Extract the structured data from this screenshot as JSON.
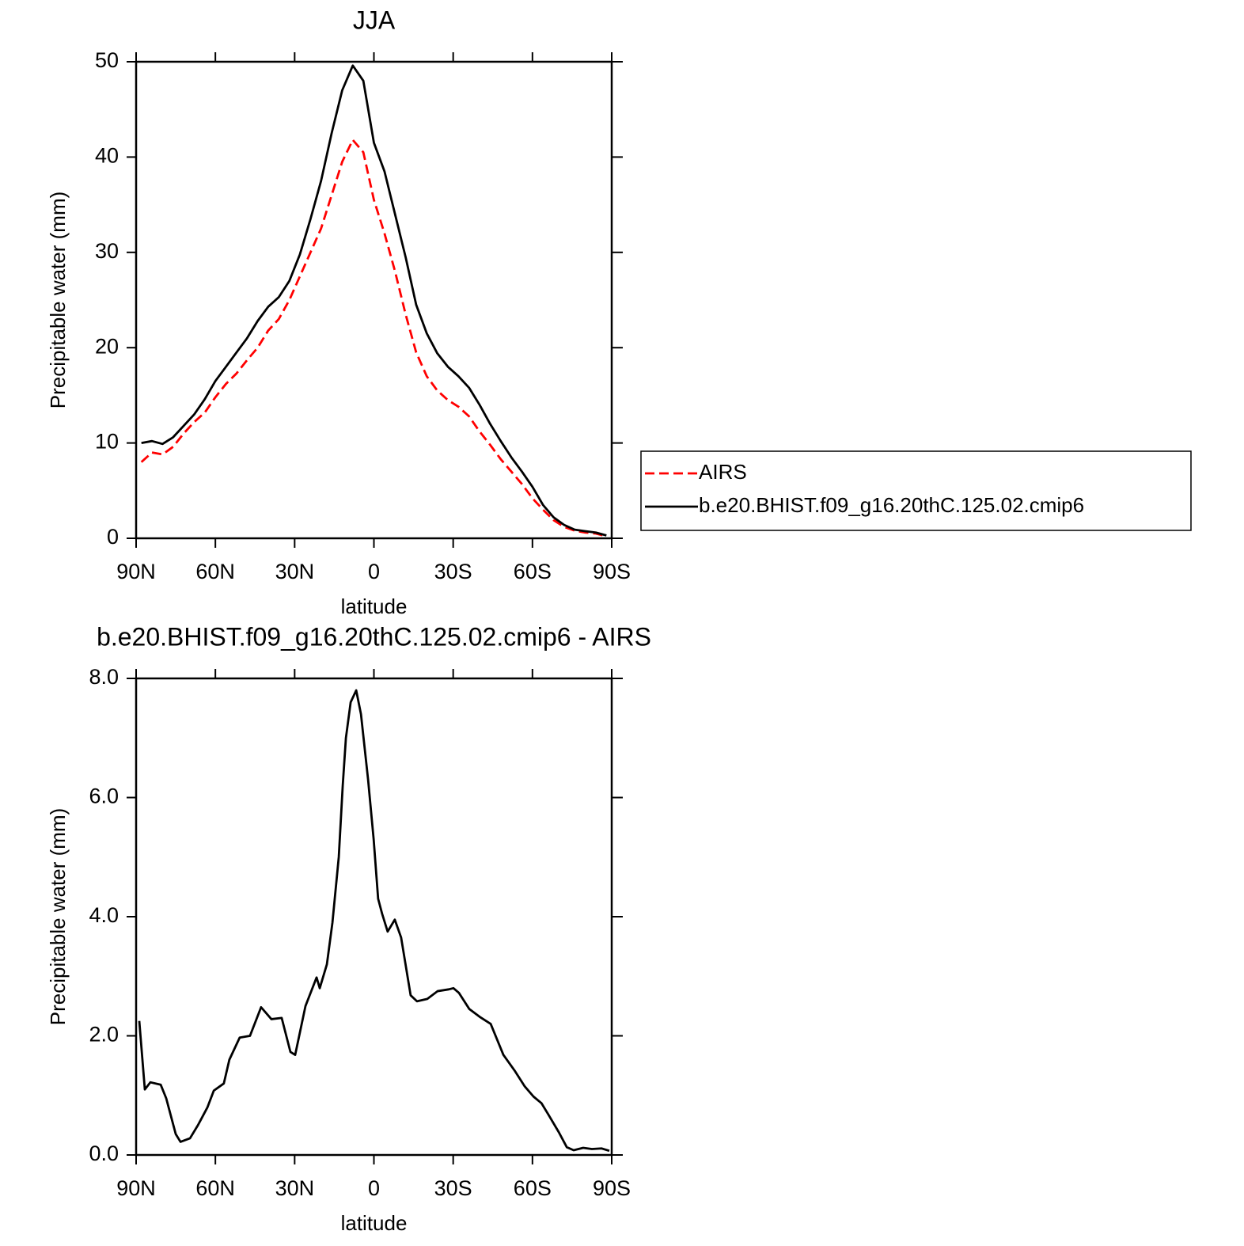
{
  "chart_data": [
    {
      "type": "line",
      "title": "JJA",
      "xlabel": "latitude",
      "ylabel": "Precipitable water (mm)",
      "x": [
        88,
        84,
        80,
        76,
        72,
        68,
        64,
        60,
        56,
        52,
        48,
        44,
        40,
        36,
        32,
        28,
        24,
        20,
        16,
        12,
        8,
        4,
        0,
        -4,
        -8,
        -12,
        -16,
        -20,
        -24,
        -28,
        -32,
        -36,
        -40,
        -44,
        -48,
        -52,
        -56,
        -60,
        -64,
        -68,
        -72,
        -76,
        -80,
        -84,
        -88
      ],
      "series": [
        {
          "name": "AIRS",
          "color": "#ff0000",
          "linestyle": "dashed",
          "values": [
            8.0,
            9.0,
            8.8,
            9.6,
            11.0,
            12.2,
            13.2,
            14.8,
            16.2,
            17.3,
            18.7,
            20.0,
            21.8,
            23.0,
            25.0,
            27.5,
            30.0,
            32.5,
            36.0,
            39.5,
            41.8,
            40.5,
            35.5,
            32.0,
            28.0,
            23.5,
            19.5,
            17.0,
            15.5,
            14.5,
            13.8,
            12.8,
            11.2,
            9.8,
            8.3,
            7.0,
            5.7,
            4.2,
            3.0,
            1.9,
            1.2,
            0.8,
            0.6,
            0.5,
            0.2
          ]
        },
        {
          "name": "b.e20.BHIST.f09_g16.20thC.125.02.cmip6",
          "color": "#000000",
          "linestyle": "solid",
          "values": [
            10.0,
            10.2,
            9.9,
            10.6,
            11.8,
            13.0,
            14.6,
            16.5,
            18.0,
            19.5,
            21.0,
            22.8,
            24.3,
            25.3,
            27.0,
            29.8,
            33.5,
            37.5,
            42.5,
            47.0,
            49.6,
            48.0,
            41.5,
            38.5,
            34.0,
            29.5,
            24.5,
            21.5,
            19.4,
            18.0,
            17.0,
            15.8,
            14.0,
            12.0,
            10.2,
            8.5,
            7.0,
            5.4,
            3.5,
            2.2,
            1.4,
            0.9,
            0.75,
            0.6,
            0.3
          ]
        }
      ],
      "xlim": [
        90,
        -90
      ],
      "xticks": [
        {
          "value": 90,
          "label": "90N"
        },
        {
          "value": 60,
          "label": "60N"
        },
        {
          "value": 30,
          "label": "30N"
        },
        0,
        {
          "value": -30,
          "label": "30S"
        },
        {
          "value": -60,
          "label": "60S"
        },
        {
          "value": -90,
          "label": "90S"
        }
      ],
      "ylim": [
        0,
        50
      ],
      "yticks": [
        0,
        10,
        20,
        30,
        40,
        50
      ],
      "legend": "outside-right"
    },
    {
      "type": "line",
      "title": "b.e20.BHIST.f09_g16.20thC.125.02.cmip6 - AIRS",
      "xlabel": "latitude",
      "ylabel": "Precipitable water (mm)",
      "x": [
        88.8,
        86.7,
        84.6,
        80.7,
        78.6,
        75,
        73.2,
        69.6,
        66.6,
        63,
        60.6,
        56.8,
        54.7,
        50.8,
        46.9,
        42.7,
        38.8,
        34.9,
        31.6,
        29.8,
        25.9,
        21.7,
        20.5,
        17.8,
        15.7,
        13.3,
        11.8,
        10.6,
        8.8,
        6.7,
        4.9,
        2.2,
        0.1,
        -1.6,
        -3.1,
        -5.2,
        -7.9,
        -10.3,
        -13.9,
        -16.3,
        -20.2,
        -24.1,
        -28.3,
        -30.1,
        -32.2,
        -36.1,
        -40,
        -44.2,
        -49,
        -53.2,
        -57.1,
        -60.4,
        -63.4,
        -66,
        -70,
        -73,
        -75.6,
        -79.2,
        -82.5,
        -86.1,
        -89.1
      ],
      "series": [
        {
          "color": "#000000",
          "linestyle": "solid",
          "values": [
            2.25,
            1.1,
            1.22,
            1.18,
            0.95,
            0.35,
            0.22,
            0.28,
            0.5,
            0.8,
            1.08,
            1.2,
            1.6,
            1.97,
            2.0,
            2.48,
            2.28,
            2.3,
            1.73,
            1.68,
            2.5,
            2.98,
            2.8,
            3.2,
            3.9,
            5.0,
            6.2,
            7.0,
            7.6,
            7.8,
            7.4,
            6.3,
            5.3,
            4.3,
            4.05,
            3.75,
            3.95,
            3.65,
            2.68,
            2.58,
            2.62,
            2.75,
            2.78,
            2.8,
            2.72,
            2.45,
            2.32,
            2.2,
            1.68,
            1.42,
            1.15,
            0.98,
            0.87,
            0.68,
            0.38,
            0.13,
            0.08,
            0.12,
            0.1,
            0.11,
            0.07
          ]
        }
      ],
      "xlim": [
        90,
        -90
      ],
      "xticks": [
        {
          "value": 90,
          "label": "90N"
        },
        {
          "value": 60,
          "label": "60N"
        },
        {
          "value": 30,
          "label": "30N"
        },
        0,
        {
          "value": -30,
          "label": "30S"
        },
        {
          "value": -60,
          "label": "60S"
        },
        {
          "value": -90,
          "label": "90S"
        }
      ],
      "ylim": [
        0,
        8
      ],
      "yticks": [
        {
          "value": 0,
          "label": "0.0"
        },
        {
          "value": 2,
          "label": "2.0"
        },
        {
          "value": 4,
          "label": "4.0"
        },
        {
          "value": 6,
          "label": "6.0"
        },
        {
          "value": 8,
          "label": "8.0"
        }
      ]
    }
  ]
}
